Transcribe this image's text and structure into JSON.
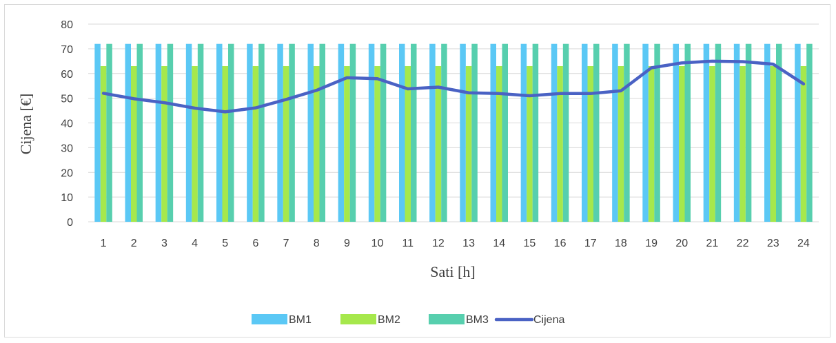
{
  "chart_data": {
    "type": "bar",
    "categories": [
      "1",
      "2",
      "3",
      "4",
      "5",
      "6",
      "7",
      "8",
      "9",
      "10",
      "11",
      "12",
      "13",
      "14",
      "15",
      "16",
      "17",
      "18",
      "19",
      "20",
      "21",
      "22",
      "23",
      "24"
    ],
    "series": [
      {
        "name": "BM1",
        "kind": "bar",
        "color": "#5bc8f5",
        "values": [
          72,
          72,
          72,
          72,
          72,
          72,
          72,
          72,
          72,
          72,
          72,
          72,
          72,
          72,
          72,
          72,
          72,
          72,
          72,
          72,
          72,
          72,
          72,
          72
        ]
      },
      {
        "name": "BM2",
        "kind": "bar",
        "color": "#a6e84c",
        "values": [
          63,
          63,
          63,
          63,
          63,
          63,
          63,
          63,
          63,
          63,
          63,
          63,
          63,
          63,
          63,
          63,
          63,
          63,
          63,
          63,
          63,
          63,
          63,
          63
        ]
      },
      {
        "name": "BM3",
        "kind": "bar",
        "color": "#57cfae",
        "values": [
          72,
          72,
          72,
          72,
          72,
          72,
          72,
          72,
          72,
          72,
          72,
          72,
          72,
          72,
          72,
          72,
          72,
          72,
          72,
          72,
          72,
          72,
          72,
          72
        ]
      },
      {
        "name": "Cijena",
        "kind": "line",
        "color": "#4a62c4",
        "values": [
          52,
          49.8,
          48.2,
          46,
          44.5,
          46.1,
          49.5,
          53.2,
          58.3,
          57.9,
          53.8,
          54.5,
          52.2,
          51.9,
          51,
          51.9,
          51.9,
          53,
          62.3,
          64.3,
          65,
          64.8,
          63.8,
          55.8
        ]
      }
    ],
    "xlabel": "Sati [h]",
    "ylabel": "Cijena [€]",
    "ylim": [
      0,
      80
    ],
    "yticks": [
      0,
      10,
      20,
      30,
      40,
      50,
      60,
      70,
      80
    ],
    "grid": true,
    "legend": "bottom"
  }
}
